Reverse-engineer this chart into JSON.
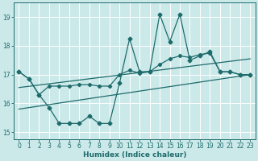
{
  "xlabel": "Humidex (Indice chaleur)",
  "ylabel": "",
  "bg_color": "#cce9ea",
  "grid_color": "#b0d8da",
  "line_color": "#1e6b6b",
  "xlim": [
    -0.5,
    23.5
  ],
  "ylim": [
    14.75,
    19.5
  ],
  "yticks": [
    15,
    16,
    17,
    18,
    19
  ],
  "xticks": [
    0,
    1,
    2,
    3,
    4,
    5,
    6,
    7,
    8,
    9,
    10,
    11,
    12,
    13,
    14,
    15,
    16,
    17,
    18,
    19,
    20,
    21,
    22,
    23
  ],
  "line1_x": [
    0,
    1,
    2,
    3,
    4,
    5,
    6,
    7,
    8,
    9,
    10,
    11,
    12,
    13,
    14,
    15,
    16,
    17,
    18,
    19,
    20,
    21,
    22,
    23
  ],
  "line1_y": [
    17.1,
    16.85,
    16.3,
    15.85,
    15.3,
    15.3,
    15.3,
    15.55,
    15.3,
    15.3,
    16.7,
    18.25,
    17.1,
    17.1,
    19.1,
    18.15,
    19.1,
    17.5,
    17.65,
    17.8,
    17.1,
    17.1,
    17.0,
    17.0
  ],
  "line2_x": [
    0,
    1,
    2,
    3,
    4,
    5,
    6,
    7,
    8,
    9,
    10,
    11,
    12,
    13,
    14,
    15,
    16,
    17,
    18,
    19,
    20,
    21,
    22,
    23
  ],
  "line2_y": [
    17.1,
    16.85,
    16.3,
    16.6,
    16.6,
    16.6,
    16.65,
    16.65,
    16.6,
    16.6,
    17.0,
    17.15,
    17.05,
    17.1,
    17.35,
    17.55,
    17.65,
    17.6,
    17.7,
    17.75,
    17.1,
    17.1,
    17.0,
    17.0
  ],
  "line3_x": [
    0,
    23
  ],
  "line3_y": [
    16.55,
    17.55
  ],
  "line4_x": [
    0,
    23
  ],
  "line4_y": [
    15.8,
    17.0
  ]
}
